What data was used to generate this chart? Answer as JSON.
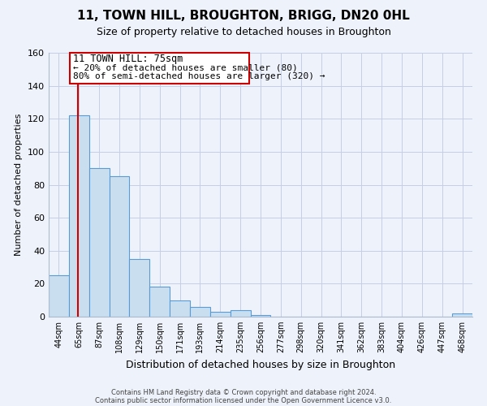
{
  "title": "11, TOWN HILL, BROUGHTON, BRIGG, DN20 0HL",
  "subtitle": "Size of property relative to detached houses in Broughton",
  "xlabel": "Distribution of detached houses by size in Broughton",
  "ylabel": "Number of detached properties",
  "bin_labels": [
    "44sqm",
    "65sqm",
    "87sqm",
    "108sqm",
    "129sqm",
    "150sqm",
    "171sqm",
    "193sqm",
    "214sqm",
    "235sqm",
    "256sqm",
    "277sqm",
    "298sqm",
    "320sqm",
    "341sqm",
    "362sqm",
    "383sqm",
    "404sqm",
    "426sqm",
    "447sqm",
    "468sqm"
  ],
  "bar_values": [
    25,
    122,
    90,
    85,
    35,
    18,
    10,
    6,
    3,
    4,
    1,
    0,
    0,
    0,
    0,
    0,
    0,
    0,
    0,
    0,
    2
  ],
  "bar_color": "#c9dff0",
  "bar_edge_color": "#5b9bd5",
  "ylim": [
    0,
    160
  ],
  "yticks": [
    0,
    20,
    40,
    60,
    80,
    100,
    120,
    140,
    160
  ],
  "bin_edges_sqm": [
    44,
    65,
    87,
    108,
    129,
    150,
    171,
    193,
    214,
    235,
    256,
    277,
    298,
    320,
    341,
    362,
    383,
    404,
    426,
    447,
    468
  ],
  "red_line_x": 75,
  "annotation_title": "11 TOWN HILL: 75sqm",
  "annotation_line1": "← 20% of detached houses are smaller (80)",
  "annotation_line2": "80% of semi-detached houses are larger (320) →",
  "footer1": "Contains HM Land Registry data © Crown copyright and database right 2024.",
  "footer2": "Contains public sector information licensed under the Open Government Licence v3.0.",
  "background_color": "#eef2fa"
}
